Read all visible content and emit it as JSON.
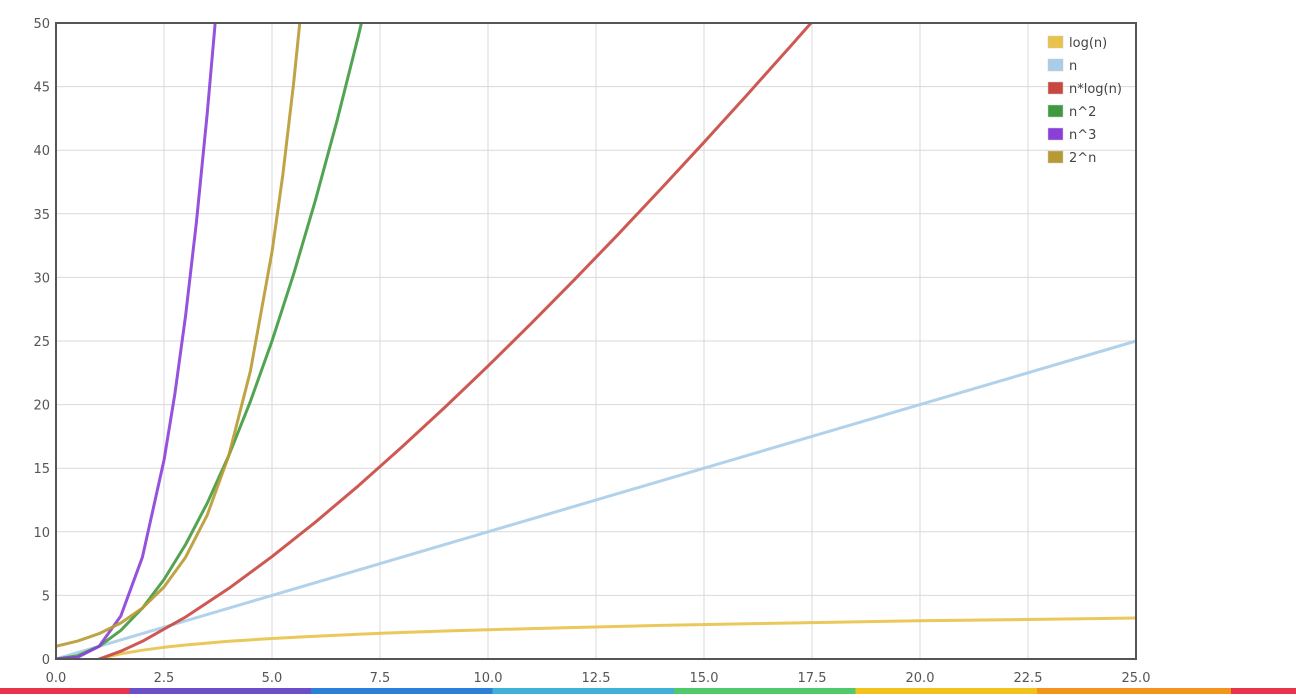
{
  "chart_data": {
    "type": "line",
    "title": "",
    "xlabel": "",
    "ylabel": "",
    "xlim": [
      0,
      25
    ],
    "ylim": [
      0,
      50
    ],
    "x_ticks": [
      "0.0",
      "2.5",
      "5.0",
      "7.5",
      "10.0",
      "12.5",
      "15.0",
      "17.5",
      "20.0",
      "22.5",
      "25.0"
    ],
    "y_ticks": [
      "0",
      "5",
      "10",
      "15",
      "20",
      "25",
      "30",
      "35",
      "40",
      "45",
      "50"
    ],
    "grid": true,
    "legend_position": "top-right",
    "series": [
      {
        "name": "log(n)",
        "color": "#e8c24a",
        "x": [
          1,
          1.5,
          2,
          2.5,
          3,
          4,
          5,
          6,
          7,
          8,
          9,
          10,
          12,
          14,
          16,
          18,
          20,
          22,
          24,
          25
        ],
        "y": [
          0,
          0.41,
          0.69,
          0.92,
          1.1,
          1.39,
          1.61,
          1.79,
          1.95,
          2.08,
          2.2,
          2.3,
          2.48,
          2.64,
          2.77,
          2.89,
          3.0,
          3.09,
          3.18,
          3.22
        ]
      },
      {
        "name": "n",
        "color": "#a9cde8",
        "x": [
          0,
          5,
          10,
          15,
          20,
          25
        ],
        "y": [
          0,
          5,
          10,
          15,
          20,
          25
        ]
      },
      {
        "name": "n*log(n)",
        "color": "#c9473f",
        "x": [
          1,
          1.5,
          2,
          3,
          4,
          5,
          6,
          7,
          8,
          9,
          10,
          11,
          12,
          13,
          14,
          15,
          16,
          17,
          17.5
        ],
        "y": [
          0,
          0.61,
          1.39,
          3.3,
          5.55,
          8.05,
          10.75,
          13.62,
          16.64,
          19.78,
          23.03,
          26.38,
          29.82,
          33.34,
          36.95,
          40.62,
          44.36,
          48.16,
          50.09
        ]
      },
      {
        "name": "n^2",
        "color": "#3f9a3f",
        "x": [
          0,
          0.5,
          1,
          1.5,
          2,
          2.5,
          3,
          3.5,
          4,
          4.5,
          5,
          5.5,
          6,
          6.5,
          7,
          7.07
        ],
        "y": [
          0,
          0.25,
          1,
          2.25,
          4,
          6.25,
          9,
          12.25,
          16,
          20.25,
          25,
          30.25,
          36,
          42.25,
          49,
          50
        ]
      },
      {
        "name": "n^3",
        "color": "#8a3fd9",
        "x": [
          0,
          0.5,
          1,
          1.5,
          2,
          2.5,
          2.75,
          3,
          3.25,
          3.5,
          3.68
        ],
        "y": [
          0,
          0.13,
          1,
          3.38,
          8,
          15.63,
          20.8,
          27,
          34.33,
          42.88,
          49.84
        ]
      },
      {
        "name": "2^n",
        "color": "#b89a32",
        "x": [
          0,
          0.5,
          1,
          1.5,
          2,
          2.5,
          3,
          3.5,
          4,
          4.5,
          5,
          5.25,
          5.5,
          5.64
        ],
        "y": [
          1,
          1.41,
          2,
          2.83,
          4,
          5.66,
          8,
          11.31,
          16,
          22.63,
          32,
          38.05,
          45.25,
          49.87
        ]
      }
    ]
  }
}
